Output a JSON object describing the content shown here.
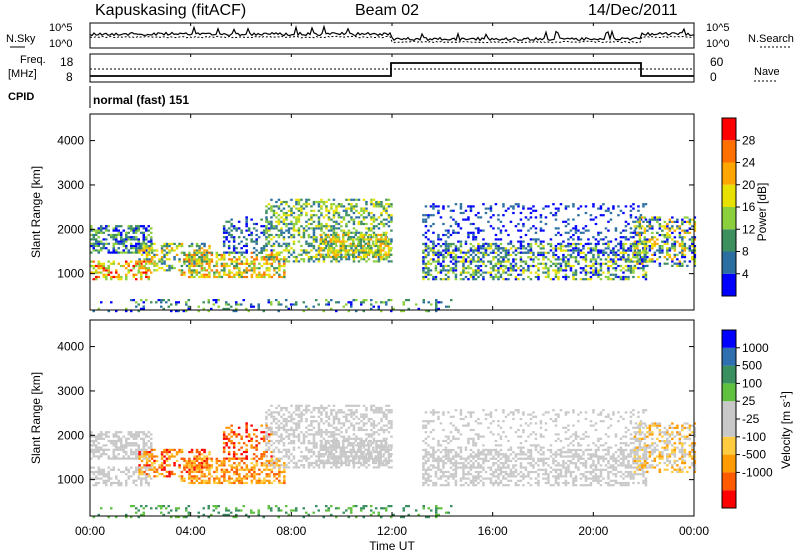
{
  "header": {
    "station": "Kapuskasing (fitACF)",
    "beam": "Beam 02",
    "date": "14/Dec/2011"
  },
  "top_strip": {
    "nsky_label": "N.Sky",
    "nsearch_label": "N.Search",
    "noise_tick_hi": "10^5",
    "noise_tick_lo": "10^0",
    "noise_tick_hi_right": "10^5",
    "noise_tick_lo_right": "10^0",
    "freq_label": "Freq.",
    "freq_unit": "[MHz]",
    "freq_tick_hi": "18",
    "freq_tick_lo": "8",
    "nave_label": "Nave",
    "nave_tick_hi": "60",
    "nave_tick_lo": "0",
    "cpid_label": "CPID",
    "cpid_value": "normal (fast) 151"
  },
  "colors": {
    "power": [
      "#0000ff",
      "#2b6fa0",
      "#3d8f5e",
      "#8ccf3c",
      "#e8e000",
      "#ffa500",
      "#ff7000",
      "#ff0000"
    ],
    "velocity": [
      "#ff0000",
      "#ff5a00",
      "#ff9a00",
      "#ffcc40",
      "#c8c8c8",
      "#c8c8c8",
      "#60c040",
      "#3a8f60",
      "#2f6fb0",
      "#0000ff"
    ]
  },
  "chart_data": [
    {
      "type": "heatmap",
      "name": "power",
      "ylabel": "Slant Range [km]",
      "xlabel": "Time UT",
      "xlim": [
        "00:00",
        "00:00"
      ],
      "ylim": [
        180,
        4600
      ],
      "x_ticks": [
        "00:00",
        "04:00",
        "08:00",
        "12:00",
        "16:00",
        "20:00",
        "00:00"
      ],
      "y_ticks": [
        1000,
        2000,
        3000,
        4000
      ],
      "colorbar_label": "Power [dB]",
      "colorbar_ticks": [
        "4",
        "8",
        "12",
        "16",
        "20",
        "24",
        "28"
      ]
    },
    {
      "type": "heatmap",
      "name": "velocity",
      "ylabel": "Slant Range [km]",
      "xlabel": "Time UT",
      "xlim": [
        "00:00",
        "00:00"
      ],
      "ylim": [
        180,
        4600
      ],
      "x_ticks": [
        "00:00",
        "04:00",
        "08:00",
        "12:00",
        "16:00",
        "20:00",
        "00:00"
      ],
      "y_ticks": [
        1000,
        2000,
        3000,
        4000
      ],
      "colorbar_label": "Velocity [m s^-1]",
      "colorbar_ticks": [
        "1000",
        "500",
        "100",
        "25",
        "-25",
        "-100",
        "-500",
        "-1000"
      ]
    }
  ]
}
